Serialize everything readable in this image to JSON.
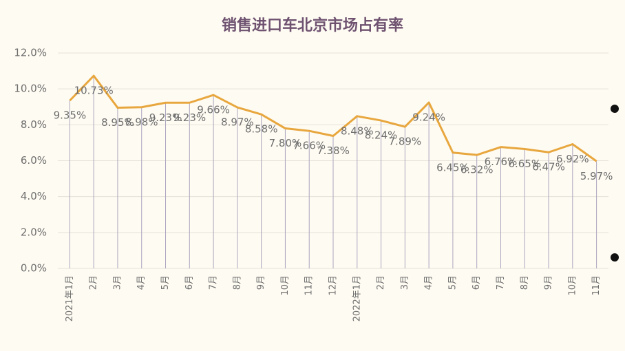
{
  "chart_data": {
    "type": "line",
    "title": "销售进口车北京市场占有率",
    "categories": [
      "2021年1月",
      "2月",
      "3月",
      "4月",
      "5月",
      "6月",
      "7月",
      "8月",
      "9月",
      "10月",
      "11月",
      "12月",
      "2022年1月",
      "2月",
      "3月",
      "4月",
      "5月",
      "6月",
      "7月",
      "8月",
      "9月",
      "10月",
      "11月"
    ],
    "series": [
      {
        "name": "销售进口车北京市场占有率",
        "color": "#e8a73e",
        "values": [
          9.35,
          10.73,
          8.95,
          8.98,
          9.23,
          9.23,
          9.66,
          8.97,
          8.58,
          7.8,
          7.66,
          7.38,
          8.48,
          8.24,
          7.89,
          9.24,
          6.45,
          6.32,
          6.76,
          6.65,
          6.47,
          6.92,
          5.97
        ],
        "value_labels": [
          "9.35%",
          "10.73%",
          "8.95%",
          "8.98%",
          "9.23%",
          "9.23%",
          "9.66%",
          "8.97%",
          "8.58%",
          "7.80%",
          "7.66%",
          "7.38%",
          "8.48%",
          "8.24%",
          "7.89%",
          "9.24%",
          "6.45%",
          "6.32%",
          "6.76%",
          "6.65%",
          "6.47%",
          "6.92%",
          "5.97%"
        ]
      }
    ],
    "ylim": [
      0,
      12
    ],
    "yticks": [
      {
        "value": 0,
        "label": "0.0%"
      },
      {
        "value": 2,
        "label": "2.0%"
      },
      {
        "value": 4,
        "label": "4.0%"
      },
      {
        "value": 6,
        "label": "6.0%"
      },
      {
        "value": 8,
        "label": "8.0%"
      },
      {
        "value": 10,
        "label": "10.0%"
      },
      {
        "value": 12,
        "label": "12.0%"
      }
    ],
    "grid": true
  }
}
